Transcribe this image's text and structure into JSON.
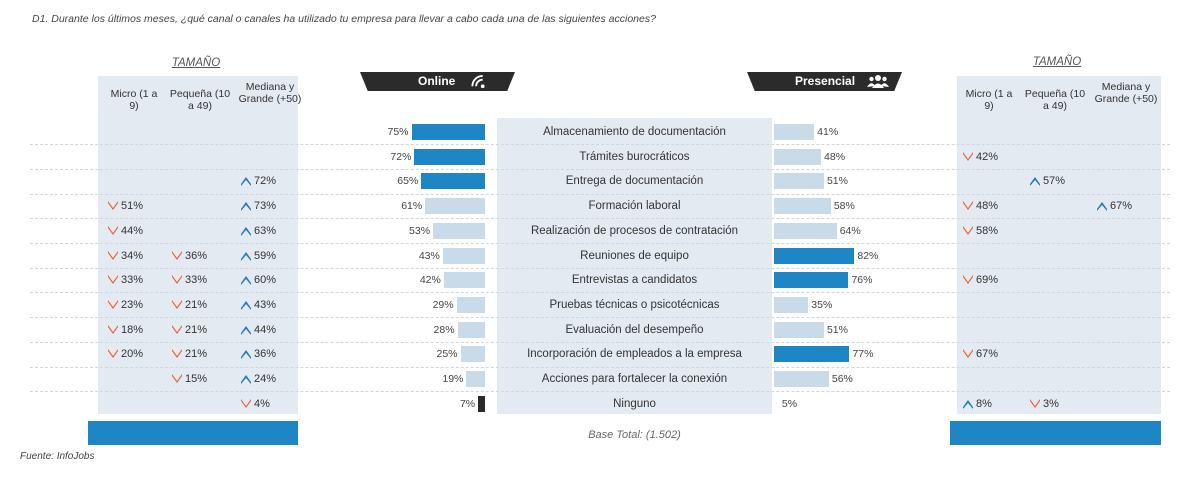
{
  "question": "D1. Durante los últimos meses, ¿qué canal o canales ha utilizado tu empresa para llevar a cabo cada una de las siguientes acciones?",
  "left_panel": {
    "title": "TAMAÑO",
    "columns": [
      "Micro (1 a 9)",
      "Pequeña (10 a 49)",
      "Mediana y Grande (+50)"
    ],
    "rows": [
      [
        null,
        null,
        null
      ],
      [
        null,
        null,
        null
      ],
      [
        null,
        null,
        {
          "value": "72%",
          "dir": "up"
        }
      ],
      [
        {
          "value": "51%",
          "dir": "down"
        },
        null,
        {
          "value": "73%",
          "dir": "up"
        }
      ],
      [
        {
          "value": "44%",
          "dir": "down"
        },
        null,
        {
          "value": "63%",
          "dir": "up"
        }
      ],
      [
        {
          "value": "34%",
          "dir": "down"
        },
        {
          "value": "36%",
          "dir": "down"
        },
        {
          "value": "59%",
          "dir": "up"
        }
      ],
      [
        {
          "value": "33%",
          "dir": "down"
        },
        {
          "value": "33%",
          "dir": "down"
        },
        {
          "value": "60%",
          "dir": "up"
        }
      ],
      [
        {
          "value": "23%",
          "dir": "down"
        },
        {
          "value": "21%",
          "dir": "down"
        },
        {
          "value": "43%",
          "dir": "up"
        }
      ],
      [
        {
          "value": "18%",
          "dir": "down"
        },
        {
          "value": "21%",
          "dir": "down"
        },
        {
          "value": "44%",
          "dir": "up"
        }
      ],
      [
        {
          "value": "20%",
          "dir": "down"
        },
        {
          "value": "21%",
          "dir": "down"
        },
        {
          "value": "36%",
          "dir": "up"
        }
      ],
      [
        null,
        {
          "value": "15%",
          "dir": "down"
        },
        {
          "value": "24%",
          "dir": "up"
        }
      ],
      [
        null,
        null,
        {
          "value": "4%",
          "dir": "down"
        }
      ]
    ]
  },
  "right_panel": {
    "title": "TAMAÑO",
    "columns": [
      "Micro (1 a 9)",
      "Pequeña (10 a 49)",
      "Mediana y Grande (+50)"
    ],
    "rows": [
      [
        null,
        null,
        null
      ],
      [
        {
          "value": "42%",
          "dir": "down"
        },
        null,
        null
      ],
      [
        null,
        {
          "value": "57%",
          "dir": "up"
        },
        null
      ],
      [
        {
          "value": "48%",
          "dir": "down"
        },
        null,
        {
          "value": "67%",
          "dir": "up"
        }
      ],
      [
        {
          "value": "58%",
          "dir": "down"
        },
        null,
        null
      ],
      [
        null,
        null,
        null
      ],
      [
        {
          "value": "69%",
          "dir": "down"
        },
        null,
        null
      ],
      [
        null,
        null,
        null
      ],
      [
        null,
        null,
        null
      ],
      [
        {
          "value": "67%",
          "dir": "down"
        },
        null,
        null
      ],
      [
        null,
        null,
        null
      ],
      [
        {
          "value": "8%",
          "dir": "up"
        },
        {
          "value": "3%",
          "dir": "down"
        },
        null
      ]
    ]
  },
  "online_label": "Online",
  "presencial_label": "Presencial",
  "base_text": "Base Total: (1.502)",
  "source": "Fuente: InfoJobs",
  "colors": {
    "highlight": "#1f86c6",
    "normal": "#c9dbe9",
    "minimal": "#2a2a2a",
    "down": "#e8613c",
    "up": "#2579b7"
  },
  "chart_data": {
    "type": "bar",
    "title": "",
    "categories": [
      "Almacenamiento de documentación",
      "Trámites burocráticos",
      "Entrega de documentación",
      "Formación laboral",
      "Realización de procesos de contratación",
      "Reuniones de equipo",
      "Entrevistas a candidatos",
      "Pruebas técnicas o psicotécnicas",
      "Evaluación del desempeño",
      "Incorporación de empleados a la empresa",
      "Acciones para fortalecer la conexión",
      "Ninguno"
    ],
    "series": [
      {
        "name": "Online",
        "values": [
          75,
          72,
          65,
          61,
          53,
          43,
          42,
          29,
          28,
          25,
          19,
          7
        ],
        "labels": [
          "75%",
          "72%",
          "65%",
          "61%",
          "53%",
          "43%",
          "42%",
          "29%",
          "28%",
          "25%",
          "19%",
          "7%"
        ],
        "styles": [
          "highlight",
          "highlight",
          "highlight",
          "normal",
          "normal",
          "normal",
          "normal",
          "normal",
          "normal",
          "normal",
          "normal",
          "minimal"
        ]
      },
      {
        "name": "Presencial",
        "values": [
          41,
          48,
          51,
          58,
          64,
          82,
          76,
          35,
          51,
          77,
          56,
          5
        ],
        "labels": [
          "41%",
          "48%",
          "51%",
          "58%",
          "64%",
          "82%",
          "76%",
          "35%",
          "51%",
          "77%",
          "56%",
          "5%"
        ],
        "styles": [
          "normal",
          "normal",
          "normal",
          "normal",
          "normal",
          "highlight",
          "highlight",
          "normal",
          "normal",
          "highlight",
          "normal",
          "none"
        ]
      }
    ],
    "xlim": [
      0,
      100
    ]
  }
}
